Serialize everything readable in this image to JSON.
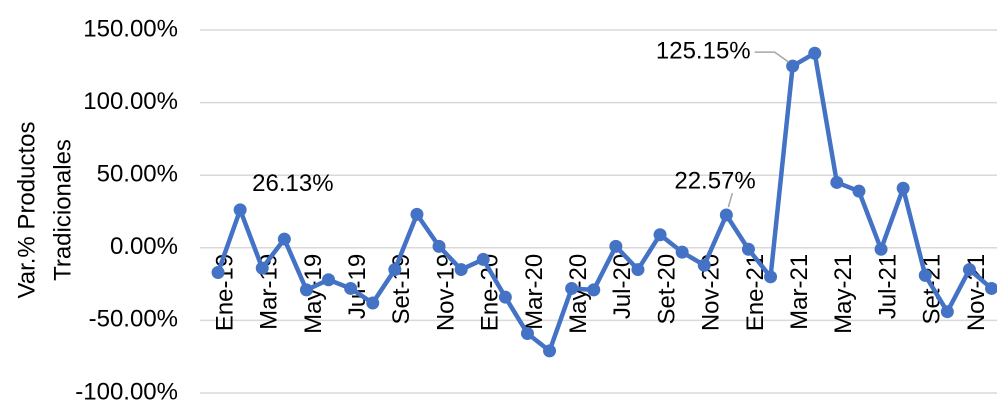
{
  "chart_data": {
    "type": "line",
    "ylabel": [
      "Var.% Productos",
      "Tradicionales"
    ],
    "categories": [
      "Ene-19",
      null,
      "Mar-19",
      null,
      "May-19",
      null,
      "Jul-19",
      null,
      "Set-19",
      null,
      "Nov-19",
      null,
      "Ene-20",
      null,
      "Mar-20",
      null,
      "May-20",
      null,
      "Jul-20",
      null,
      "Set-20",
      null,
      "Nov-20",
      null,
      "Ene-21",
      null,
      "Mar-21",
      null,
      "May-21",
      null,
      "Jul-21",
      null,
      "Set-21",
      null,
      "Nov-21",
      null
    ],
    "series": [
      {
        "color": "#4472c4",
        "values": [
          -17,
          26.13,
          -14,
          6,
          -29,
          -22,
          -28,
          -38,
          -15,
          23,
          1,
          -15,
          -8,
          -34,
          -59,
          -71,
          -28,
          -29,
          1,
          -15,
          9,
          -3,
          -12,
          22.57,
          -1,
          -20,
          125.15,
          134,
          45,
          39,
          -1,
          41,
          -19,
          -44,
          -15,
          -28
        ],
        "value_labels": [
          null,
          "26.13%",
          null,
          null,
          null,
          null,
          null,
          null,
          null,
          null,
          null,
          null,
          null,
          null,
          null,
          null,
          null,
          null,
          null,
          null,
          null,
          null,
          null,
          "22.57%",
          null,
          null,
          "125.15%",
          null,
          null,
          null,
          null,
          null,
          null,
          null,
          null,
          null
        ]
      }
    ],
    "ylim": [
      -100,
      150
    ],
    "yticks": [
      {
        "value": -100,
        "label": "-100.00%"
      },
      {
        "value": -50,
        "label": "-50.00%"
      },
      {
        "value": 0,
        "label": "0.00%"
      },
      {
        "value": 50,
        "label": "50.00%"
      },
      {
        "value": 100,
        "label": "100.00%"
      },
      {
        "value": 150,
        "label": "150.00%"
      }
    ],
    "grid": true
  }
}
